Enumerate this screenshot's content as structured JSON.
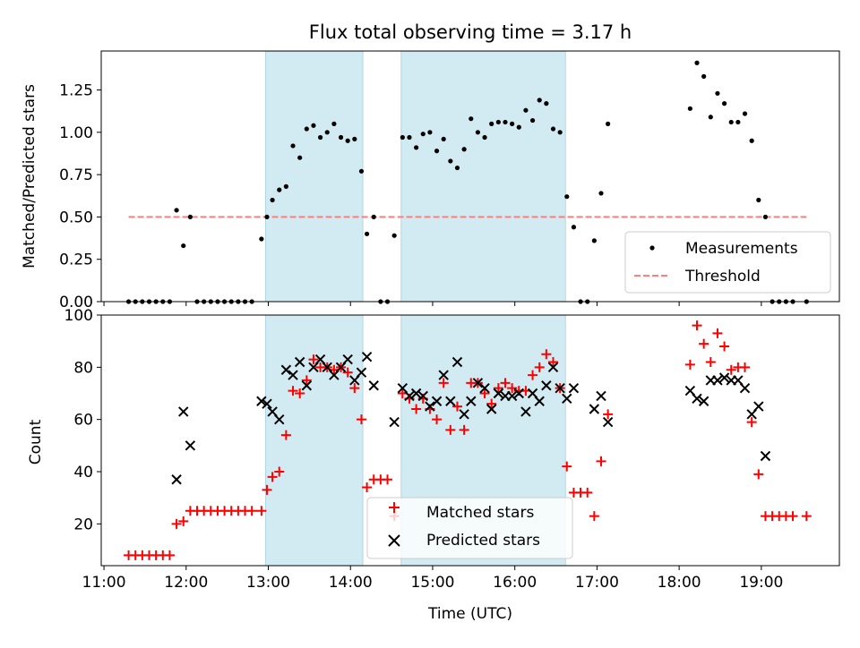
{
  "chart_data": [
    {
      "type": "scatter",
      "title": "Flux total observing time = 3.17 h",
      "ylabel": "Matched/Predicted stars",
      "ylim": [
        0,
        1.48
      ],
      "xlim": [
        "10:58",
        "19:57"
      ],
      "yticks": [
        "0.00",
        "0.25",
        "0.50",
        "0.75",
        "1.00",
        "1.25"
      ],
      "ytick_values": [
        0,
        0.25,
        0.5,
        0.75,
        1.0,
        1.25
      ],
      "shaded_intervals": [
        [
          "12:58",
          "14:09"
        ],
        [
          "14:37",
          "16:37"
        ]
      ],
      "shade_color": "#add8e6",
      "threshold": {
        "name": "Threshold",
        "value": 0.5,
        "x_start": "11:18",
        "x_end": "19:33",
        "color": "#ff7f7f"
      },
      "legend": {
        "placement": "lower-right",
        "entries": [
          "Measurements",
          "Threshold"
        ]
      },
      "series": [
        {
          "name": "Measurements",
          "color": "#000000",
          "points": [
            [
              "11:18",
              0
            ],
            [
              "11:23",
              0
            ],
            [
              "11:28",
              0
            ],
            [
              "11:33",
              0
            ],
            [
              "11:38",
              0
            ],
            [
              "11:43",
              0
            ],
            [
              "11:48",
              0
            ],
            [
              "11:53",
              0.54
            ],
            [
              "11:58",
              0.33
            ],
            [
              "12:03",
              0.5
            ],
            [
              "12:08",
              0
            ],
            [
              "12:13",
              0
            ],
            [
              "12:18",
              0
            ],
            [
              "12:23",
              0
            ],
            [
              "12:28",
              0
            ],
            [
              "12:33",
              0
            ],
            [
              "12:38",
              0
            ],
            [
              "12:43",
              0
            ],
            [
              "12:48",
              0
            ],
            [
              "12:55",
              0.37
            ],
            [
              "12:59",
              0.5
            ],
            [
              "13:03",
              0.6
            ],
            [
              "13:08",
              0.66
            ],
            [
              "13:13",
              0.68
            ],
            [
              "13:18",
              0.92
            ],
            [
              "13:23",
              0.85
            ],
            [
              "13:28",
              1.02
            ],
            [
              "13:33",
              1.04
            ],
            [
              "13:38",
              0.97
            ],
            [
              "13:43",
              1.0
            ],
            [
              "13:48",
              1.05
            ],
            [
              "13:53",
              0.97
            ],
            [
              "13:58",
              0.95
            ],
            [
              "14:03",
              0.96
            ],
            [
              "14:08",
              0.77
            ],
            [
              "14:12",
              0.4
            ],
            [
              "14:17",
              0.5
            ],
            [
              "14:22",
              0
            ],
            [
              "14:27",
              0
            ],
            [
              "14:32",
              0.39
            ],
            [
              "14:38",
              0.97
            ],
            [
              "14:43",
              0.97
            ],
            [
              "14:48",
              0.91
            ],
            [
              "14:53",
              0.99
            ],
            [
              "14:58",
              1.0
            ],
            [
              "15:03",
              0.89
            ],
            [
              "15:08",
              0.96
            ],
            [
              "15:13",
              0.83
            ],
            [
              "15:18",
              0.79
            ],
            [
              "15:23",
              0.9
            ],
            [
              "15:28",
              1.08
            ],
            [
              "15:33",
              1.0
            ],
            [
              "15:38",
              0.97
            ],
            [
              "15:43",
              1.05
            ],
            [
              "15:48",
              1.06
            ],
            [
              "15:53",
              1.06
            ],
            [
              "15:58",
              1.05
            ],
            [
              "16:03",
              1.03
            ],
            [
              "16:08",
              1.13
            ],
            [
              "16:13",
              1.07
            ],
            [
              "16:18",
              1.19
            ],
            [
              "16:23",
              1.17
            ],
            [
              "16:28",
              1.02
            ],
            [
              "16:33",
              1.0
            ],
            [
              "16:38",
              0.62
            ],
            [
              "16:43",
              0.44
            ],
            [
              "16:48",
              0
            ],
            [
              "16:53",
              0
            ],
            [
              "16:58",
              0.36
            ],
            [
              "17:03",
              0.64
            ],
            [
              "17:08",
              1.05
            ],
            [
              "18:08",
              1.14
            ],
            [
              "18:13",
              1.41
            ],
            [
              "18:18",
              1.33
            ],
            [
              "18:23",
              1.09
            ],
            [
              "18:28",
              1.23
            ],
            [
              "18:33",
              1.17
            ],
            [
              "18:38",
              1.06
            ],
            [
              "18:43",
              1.06
            ],
            [
              "18:48",
              1.11
            ],
            [
              "18:53",
              0.95
            ],
            [
              "18:58",
              0.6
            ],
            [
              "19:03",
              0.5
            ],
            [
              "19:08",
              0
            ],
            [
              "19:13",
              0
            ],
            [
              "19:18",
              0
            ],
            [
              "19:23",
              0
            ],
            [
              "19:33",
              0
            ]
          ]
        }
      ]
    },
    {
      "type": "scatter",
      "xlabel": "Time (UTC)",
      "ylabel": "Count",
      "ylim": [
        4,
        100
      ],
      "xlim": [
        "10:58",
        "19:57"
      ],
      "xticks": [
        "11:00",
        "12:00",
        "13:00",
        "14:00",
        "15:00",
        "16:00",
        "17:00",
        "18:00",
        "19:00"
      ],
      "yticks": [
        "20",
        "40",
        "60",
        "80",
        "100"
      ],
      "ytick_values": [
        20,
        40,
        60,
        80,
        100
      ],
      "shaded_intervals": [
        [
          "12:58",
          "14:09"
        ],
        [
          "14:37",
          "16:37"
        ]
      ],
      "shade_color": "#add8e6",
      "legend": {
        "placement": "bottom-center",
        "entries": [
          "Matched stars",
          "Predicted stars"
        ]
      },
      "series": [
        {
          "name": "Matched stars",
          "marker": "plus",
          "color": "#ff0000",
          "points": [
            [
              "11:18",
              8
            ],
            [
              "11:23",
              8
            ],
            [
              "11:28",
              8
            ],
            [
              "11:33",
              8
            ],
            [
              "11:38",
              8
            ],
            [
              "11:43",
              8
            ],
            [
              "11:48",
              8
            ],
            [
              "11:53",
              20
            ],
            [
              "11:58",
              21
            ],
            [
              "12:03",
              25
            ],
            [
              "12:08",
              25
            ],
            [
              "12:13",
              25
            ],
            [
              "12:18",
              25
            ],
            [
              "12:23",
              25
            ],
            [
              "12:28",
              25
            ],
            [
              "12:33",
              25
            ],
            [
              "12:38",
              25
            ],
            [
              "12:43",
              25
            ],
            [
              "12:48",
              25
            ],
            [
              "12:55",
              25
            ],
            [
              "12:59",
              33
            ],
            [
              "13:03",
              38
            ],
            [
              "13:08",
              40
            ],
            [
              "13:13",
              54
            ],
            [
              "13:18",
              71
            ],
            [
              "13:23",
              70
            ],
            [
              "13:28",
              75
            ],
            [
              "13:33",
              83
            ],
            [
              "13:38",
              80
            ],
            [
              "13:43",
              80
            ],
            [
              "13:48",
              79
            ],
            [
              "13:53",
              80
            ],
            [
              "13:58",
              78
            ],
            [
              "14:03",
              72
            ],
            [
              "14:08",
              60
            ],
            [
              "14:12",
              34
            ],
            [
              "14:17",
              37
            ],
            [
              "14:22",
              37
            ],
            [
              "14:27",
              37
            ],
            [
              "14:32",
              23
            ],
            [
              "14:38",
              70
            ],
            [
              "14:43",
              68
            ],
            [
              "14:48",
              64
            ],
            [
              "14:53",
              68
            ],
            [
              "14:58",
              64
            ],
            [
              "15:03",
              60
            ],
            [
              "15:08",
              74
            ],
            [
              "15:13",
              56
            ],
            [
              "15:18",
              65
            ],
            [
              "15:23",
              56
            ],
            [
              "15:28",
              74
            ],
            [
              "15:33",
              74
            ],
            [
              "15:38",
              70
            ],
            [
              "15:43",
              66
            ],
            [
              "15:48",
              72
            ],
            [
              "15:53",
              74
            ],
            [
              "15:58",
              72
            ],
            [
              "16:03",
              71
            ],
            [
              "16:08",
              71
            ],
            [
              "16:13",
              77
            ],
            [
              "16:18",
              80
            ],
            [
              "16:23",
              85
            ],
            [
              "16:28",
              82
            ],
            [
              "16:33",
              72
            ],
            [
              "16:38",
              42
            ],
            [
              "16:43",
              32
            ],
            [
              "16:48",
              32
            ],
            [
              "16:53",
              32
            ],
            [
              "16:58",
              23
            ],
            [
              "17:03",
              44
            ],
            [
              "17:08",
              62
            ],
            [
              "18:08",
              81
            ],
            [
              "18:13",
              96
            ],
            [
              "18:18",
              89
            ],
            [
              "18:23",
              82
            ],
            [
              "18:28",
              93
            ],
            [
              "18:33",
              88
            ],
            [
              "18:38",
              79
            ],
            [
              "18:43",
              80
            ],
            [
              "18:48",
              80
            ],
            [
              "18:53",
              59
            ],
            [
              "18:58",
              39
            ],
            [
              "19:03",
              23
            ],
            [
              "19:08",
              23
            ],
            [
              "19:13",
              23
            ],
            [
              "19:18",
              23
            ],
            [
              "19:23",
              23
            ],
            [
              "19:33",
              23
            ]
          ]
        },
        {
          "name": "Predicted stars",
          "marker": "x",
          "color": "#000000",
          "points": [
            [
              "11:53",
              37
            ],
            [
              "11:58",
              63
            ],
            [
              "12:03",
              50
            ],
            [
              "12:55",
              67
            ],
            [
              "12:59",
              66
            ],
            [
              "13:03",
              63
            ],
            [
              "13:08",
              60
            ],
            [
              "13:13",
              79
            ],
            [
              "13:18",
              77
            ],
            [
              "13:23",
              82
            ],
            [
              "13:28",
              73
            ],
            [
              "13:33",
              80
            ],
            [
              "13:38",
              83
            ],
            [
              "13:43",
              80
            ],
            [
              "13:48",
              77
            ],
            [
              "13:53",
              80
            ],
            [
              "13:58",
              83
            ],
            [
              "14:03",
              75
            ],
            [
              "14:08",
              78
            ],
            [
              "14:12",
              84
            ],
            [
              "14:17",
              73
            ],
            [
              "14:32",
              59
            ],
            [
              "14:38",
              72
            ],
            [
              "14:43",
              69
            ],
            [
              "14:48",
              70
            ],
            [
              "14:53",
              69
            ],
            [
              "14:58",
              65
            ],
            [
              "15:03",
              67
            ],
            [
              "15:08",
              77
            ],
            [
              "15:13",
              67
            ],
            [
              "15:18",
              82
            ],
            [
              "15:23",
              62
            ],
            [
              "15:28",
              67
            ],
            [
              "15:33",
              74
            ],
            [
              "15:38",
              72
            ],
            [
              "15:43",
              64
            ],
            [
              "15:48",
              70
            ],
            [
              "15:53",
              69
            ],
            [
              "15:58",
              69
            ],
            [
              "16:03",
              70
            ],
            [
              "16:08",
              63
            ],
            [
              "16:13",
              70
            ],
            [
              "16:18",
              67
            ],
            [
              "16:23",
              73
            ],
            [
              "16:28",
              80
            ],
            [
              "16:33",
              72
            ],
            [
              "16:38",
              68
            ],
            [
              "16:43",
              72
            ],
            [
              "16:58",
              64
            ],
            [
              "17:03",
              69
            ],
            [
              "17:08",
              59
            ],
            [
              "18:08",
              71
            ],
            [
              "18:13",
              68
            ],
            [
              "18:18",
              67
            ],
            [
              "18:23",
              75
            ],
            [
              "18:28",
              75
            ],
            [
              "18:33",
              76
            ],
            [
              "18:38",
              75
            ],
            [
              "18:43",
              75
            ],
            [
              "18:48",
              72
            ],
            [
              "18:53",
              62
            ],
            [
              "18:58",
              65
            ],
            [
              "19:03",
              46
            ]
          ]
        }
      ]
    }
  ]
}
